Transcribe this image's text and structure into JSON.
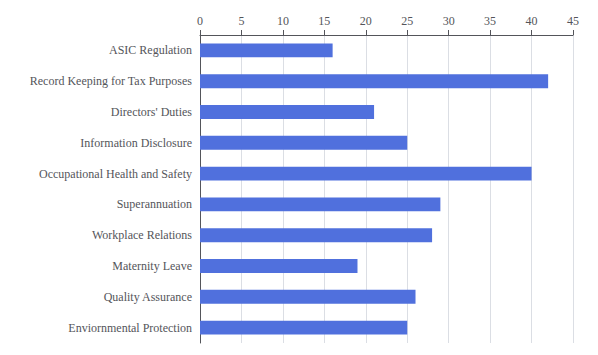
{
  "chart_data": {
    "type": "bar",
    "orientation": "horizontal",
    "categories": [
      "Enviornmental Protection",
      "Quality Assurance",
      "Maternity Leave",
      "Workplace Relations",
      "Superannuation",
      "Occupational Health and Safety",
      "Information Disclosure",
      "Directors' Duties",
      "Record Keeping for Tax Purposes",
      "ASIC Regulation"
    ],
    "values": [
      25,
      26,
      19,
      28,
      29,
      40,
      25,
      21,
      42,
      16
    ],
    "xlim": [
      0,
      45
    ],
    "xticks": [
      0,
      5,
      10,
      15,
      20,
      25,
      30,
      35,
      40,
      45
    ],
    "grid": true
  }
}
